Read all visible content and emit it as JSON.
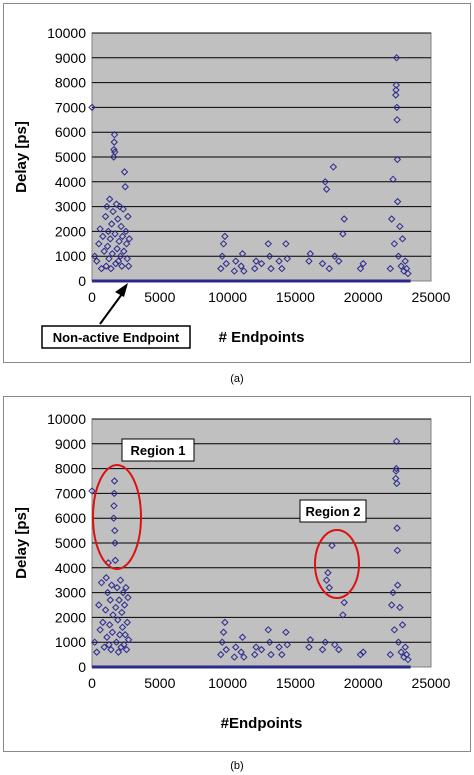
{
  "captions": {
    "a": "(a)",
    "b": "(b)"
  },
  "colors": {
    "plot_bg": "#c0c0c0",
    "marker": "#2a2a8c",
    "ellipse": "#dd1111",
    "grid": "#000000"
  },
  "chart_data": [
    {
      "type": "scatter",
      "title": "",
      "xlabel": "# Endpoints",
      "ylabel": "Delay [ps]",
      "xlim": [
        0,
        25000
      ],
      "ylim": [
        0,
        10000
      ],
      "xticks": [
        0,
        5000,
        10000,
        15000,
        20000,
        25000
      ],
      "yticks": [
        0,
        1000,
        2000,
        3000,
        4000,
        5000,
        6000,
        7000,
        8000,
        9000,
        10000
      ],
      "grid": "horizontal",
      "marker": "diamond",
      "series": [
        {
          "points": [
            [
              0,
              7000
            ],
            [
              200,
              1000
            ],
            [
              350,
              800
            ],
            [
              500,
              1500
            ],
            [
              600,
              2100
            ],
            [
              700,
              500
            ],
            [
              800,
              1800
            ],
            [
              900,
              1200
            ],
            [
              1000,
              2600
            ],
            [
              1050,
              600
            ],
            [
              1100,
              3000
            ],
            [
              1150,
              1400
            ],
            [
              1200,
              2000
            ],
            [
              1250,
              900
            ],
            [
              1300,
              3300
            ],
            [
              1350,
              1700
            ],
            [
              1400,
              500
            ],
            [
              1450,
              2300
            ],
            [
              1500,
              1100
            ],
            [
              1550,
              2800
            ],
            [
              1600,
              5000
            ],
            [
              1620,
              5300
            ],
            [
              1640,
              5600
            ],
            [
              1660,
              5900
            ],
            [
              1680,
              5200
            ],
            [
              1700,
              1900
            ],
            [
              1750,
              700
            ],
            [
              1800,
              3100
            ],
            [
              1850,
              1300
            ],
            [
              1900,
              2500
            ],
            [
              1950,
              800
            ],
            [
              2000,
              1600
            ],
            [
              2050,
              3000
            ],
            [
              2100,
              1000
            ],
            [
              2150,
              2200
            ],
            [
              2200,
              600
            ],
            [
              2250,
              1800
            ],
            [
              2300,
              2900
            ],
            [
              2350,
              1200
            ],
            [
              2400,
              4400
            ],
            [
              2450,
              3800
            ],
            [
              2500,
              2000
            ],
            [
              2550,
              1500
            ],
            [
              2600,
              900
            ],
            [
              2650,
              2600
            ],
            [
              2700,
              600
            ],
            [
              2750,
              1700
            ],
            [
              9500,
              500
            ],
            [
              9600,
              1000
            ],
            [
              9700,
              1500
            ],
            [
              9800,
              1800
            ],
            [
              9900,
              700
            ],
            [
              10500,
              400
            ],
            [
              10600,
              800
            ],
            [
              11000,
              600
            ],
            [
              11100,
              1100
            ],
            [
              11200,
              400
            ],
            [
              12000,
              500
            ],
            [
              12100,
              800
            ],
            [
              12500,
              700
            ],
            [
              13000,
              1500
            ],
            [
              13100,
              1000
            ],
            [
              13200,
              500
            ],
            [
              13800,
              800
            ],
            [
              14000,
              500
            ],
            [
              14300,
              1500
            ],
            [
              14400,
              900
            ],
            [
              16000,
              800
            ],
            [
              16100,
              1100
            ],
            [
              17000,
              700
            ],
            [
              17200,
              4000
            ],
            [
              17300,
              3700
            ],
            [
              17500,
              500
            ],
            [
              17800,
              4600
            ],
            [
              17900,
              1000
            ],
            [
              18200,
              800
            ],
            [
              18500,
              1900
            ],
            [
              18600,
              2500
            ],
            [
              19800,
              500
            ],
            [
              20000,
              700
            ],
            [
              22000,
              500
            ],
            [
              22100,
              2500
            ],
            [
              22200,
              4100
            ],
            [
              22300,
              1500
            ],
            [
              22400,
              7500
            ],
            [
              22420,
              7700
            ],
            [
              22440,
              7900
            ],
            [
              22460,
              9000
            ],
            [
              22480,
              7000
            ],
            [
              22500,
              6500
            ],
            [
              22520,
              4900
            ],
            [
              22540,
              3200
            ],
            [
              22600,
              1000
            ],
            [
              22700,
              2200
            ],
            [
              22800,
              600
            ],
            [
              22900,
              1700
            ],
            [
              23000,
              400
            ],
            [
              23100,
              800
            ],
            [
              23200,
              500
            ],
            [
              23300,
              300
            ]
          ]
        }
      ],
      "annotations": [
        {
          "text": "Non-active Endpoint",
          "points_to": [
            2300,
            0
          ]
        }
      ]
    },
    {
      "type": "scatter",
      "title": "",
      "xlabel": "#Endpoints",
      "ylabel": "Delay [ps]",
      "xlim": [
        0,
        25000
      ],
      "ylim": [
        0,
        10000
      ],
      "xticks": [
        0,
        5000,
        10000,
        15000,
        20000,
        25000
      ],
      "yticks": [
        0,
        1000,
        2000,
        3000,
        4000,
        5000,
        6000,
        7000,
        8000,
        9000,
        10000
      ],
      "grid": "horizontal",
      "marker": "diamond",
      "series": [
        {
          "points": [
            [
              0,
              7100
            ],
            [
              200,
              1000
            ],
            [
              350,
              600
            ],
            [
              500,
              2500
            ],
            [
              600,
              1500
            ],
            [
              700,
              3400
            ],
            [
              800,
              1800
            ],
            [
              900,
              800
            ],
            [
              1000,
              2300
            ],
            [
              1050,
              3600
            ],
            [
              1100,
              1200
            ],
            [
              1150,
              3000
            ],
            [
              1200,
              4200
            ],
            [
              1250,
              900
            ],
            [
              1300,
              1700
            ],
            [
              1350,
              2700
            ],
            [
              1400,
              700
            ],
            [
              1450,
              3300
            ],
            [
              1500,
              1400
            ],
            [
              1550,
              2100
            ],
            [
              1600,
              6000
            ],
            [
              1620,
              6500
            ],
            [
              1640,
              7000
            ],
            [
              1660,
              7500
            ],
            [
              1680,
              5500
            ],
            [
              1700,
              5000
            ],
            [
              1720,
              4300
            ],
            [
              1750,
              2400
            ],
            [
              1800,
              1000
            ],
            [
              1850,
              3200
            ],
            [
              1900,
              1900
            ],
            [
              1950,
              600
            ],
            [
              2000,
              2700
            ],
            [
              2050,
              1300
            ],
            [
              2100,
              3500
            ],
            [
              2150,
              800
            ],
            [
              2200,
              2200
            ],
            [
              2250,
              1600
            ],
            [
              2300,
              3000
            ],
            [
              2350,
              900
            ],
            [
              2400,
              2500
            ],
            [
              2450,
              1300
            ],
            [
              2500,
              3200
            ],
            [
              2550,
              700
            ],
            [
              2600,
              1800
            ],
            [
              2650,
              2800
            ],
            [
              2700,
              1100
            ],
            [
              9500,
              500
            ],
            [
              9600,
              1000
            ],
            [
              9700,
              1400
            ],
            [
              9800,
              1800
            ],
            [
              9900,
              700
            ],
            [
              10500,
              400
            ],
            [
              10600,
              800
            ],
            [
              11000,
              600
            ],
            [
              11100,
              1200
            ],
            [
              11200,
              400
            ],
            [
              12000,
              500
            ],
            [
              12100,
              800
            ],
            [
              12500,
              700
            ],
            [
              13000,
              1500
            ],
            [
              13100,
              1000
            ],
            [
              13200,
              500
            ],
            [
              13800,
              800
            ],
            [
              14000,
              500
            ],
            [
              14300,
              1400
            ],
            [
              14400,
              900
            ],
            [
              16000,
              800
            ],
            [
              16100,
              1100
            ],
            [
              17000,
              700
            ],
            [
              17200,
              1000
            ],
            [
              17300,
              3500
            ],
            [
              17400,
              3800
            ],
            [
              17500,
              3200
            ],
            [
              17700,
              4900
            ],
            [
              17900,
              900
            ],
            [
              18200,
              700
            ],
            [
              18500,
              2100
            ],
            [
              18600,
              2600
            ],
            [
              19800,
              500
            ],
            [
              20000,
              600
            ],
            [
              22000,
              500
            ],
            [
              22100,
              2500
            ],
            [
              22200,
              3000
            ],
            [
              22300,
              1500
            ],
            [
              22400,
              7600
            ],
            [
              22420,
              7900
            ],
            [
              22440,
              8000
            ],
            [
              22460,
              9100
            ],
            [
              22480,
              7400
            ],
            [
              22500,
              5600
            ],
            [
              22520,
              4700
            ],
            [
              22540,
              3300
            ],
            [
              22600,
              1000
            ],
            [
              22700,
              2400
            ],
            [
              22800,
              600
            ],
            [
              22900,
              1700
            ],
            [
              23000,
              400
            ],
            [
              23100,
              800
            ],
            [
              23200,
              500
            ],
            [
              23300,
              300
            ]
          ]
        }
      ],
      "annotations": [
        {
          "text": "Region 1"
        },
        {
          "text": "Region 2"
        }
      ]
    }
  ]
}
